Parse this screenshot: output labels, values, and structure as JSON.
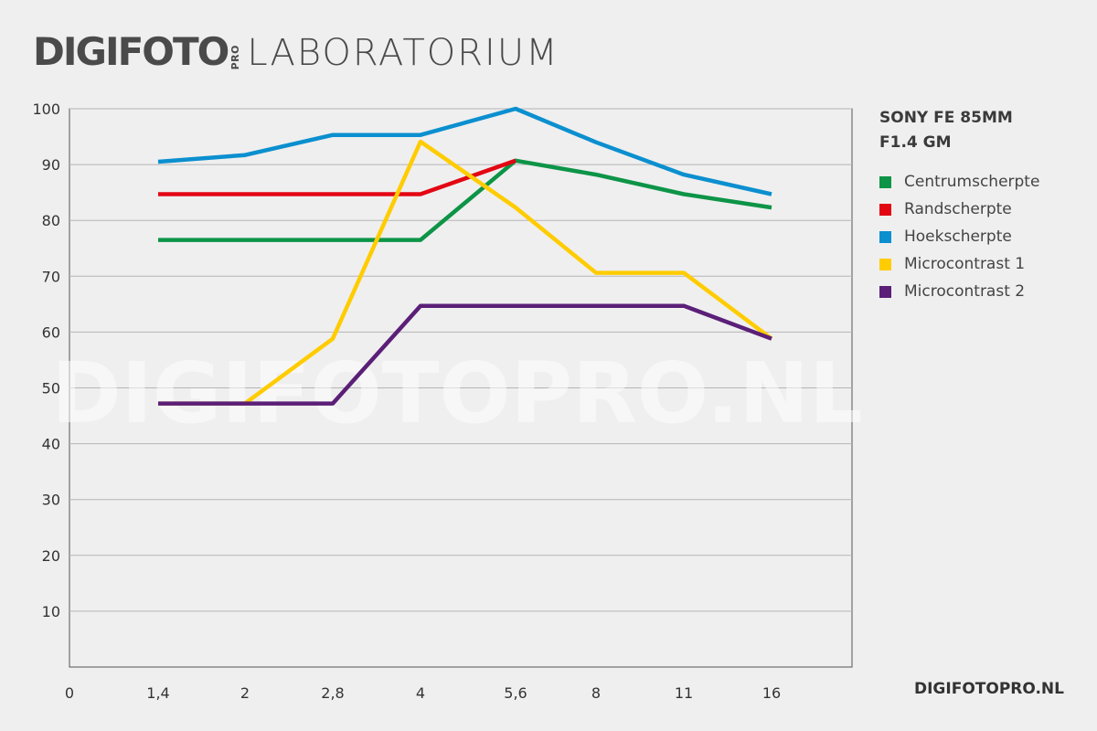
{
  "header": {
    "brand": "DIGIFOTO",
    "brand_pro": "PRO",
    "subtitle": "LABORATORIUM"
  },
  "source": "DIGIFOTOPRO.NL",
  "watermark": "DIGIFOTOPRO.NL",
  "chart_data": {
    "type": "line",
    "title": "SONY FE 85MM\nF1.4 GM",
    "xlabel": "",
    "ylabel": "",
    "categories": [
      "0",
      "1,4",
      "2",
      "2,8",
      "4",
      "5,6",
      "8",
      "11",
      "16"
    ],
    "y_ticks": [
      10,
      20,
      30,
      40,
      50,
      60,
      70,
      80,
      90,
      100
    ],
    "ylim": [
      0,
      100
    ],
    "grid": true,
    "legend_position": "right",
    "series": [
      {
        "name": "Centrumscherpte",
        "color": "#0d9447",
        "points": [
          [
            1,
            76.5
          ],
          [
            2,
            76.5
          ],
          [
            3,
            76.5
          ],
          [
            4,
            76.5
          ],
          [
            5,
            90.7
          ],
          [
            6,
            88.2
          ],
          [
            7,
            84.7
          ],
          [
            8,
            82.3
          ]
        ]
      },
      {
        "name": "Randscherpte",
        "color": "#e30613",
        "points": [
          [
            1,
            84.7
          ],
          [
            2,
            84.7
          ],
          [
            3,
            84.7
          ],
          [
            4,
            84.7
          ],
          [
            5,
            90.7
          ]
        ]
      },
      {
        "name": "Hoekscherpte",
        "color": "#0b8fcf",
        "points": [
          [
            1,
            90.5
          ],
          [
            2,
            91.7
          ],
          [
            3,
            95.3
          ],
          [
            4,
            95.3
          ],
          [
            5,
            100
          ],
          [
            6,
            94
          ],
          [
            7,
            88.2
          ],
          [
            8,
            84.7
          ]
        ]
      },
      {
        "name": "Microcontrast 1",
        "color": "#ffcc00",
        "points": [
          [
            1,
            47.2
          ],
          [
            2,
            47.2
          ],
          [
            3,
            58.8
          ],
          [
            4,
            94.1
          ],
          [
            5,
            82.3
          ],
          [
            6,
            70.6
          ],
          [
            7,
            70.6
          ],
          [
            8,
            58.8
          ]
        ]
      },
      {
        "name": "Microcontrast 2",
        "color": "#5b1f78",
        "points": [
          [
            1,
            47.2
          ],
          [
            2,
            47.2
          ],
          [
            3,
            47.2
          ],
          [
            4,
            64.7
          ],
          [
            5,
            64.7
          ],
          [
            6,
            64.7
          ],
          [
            7,
            64.7
          ],
          [
            8,
            58.8
          ]
        ]
      }
    ]
  }
}
